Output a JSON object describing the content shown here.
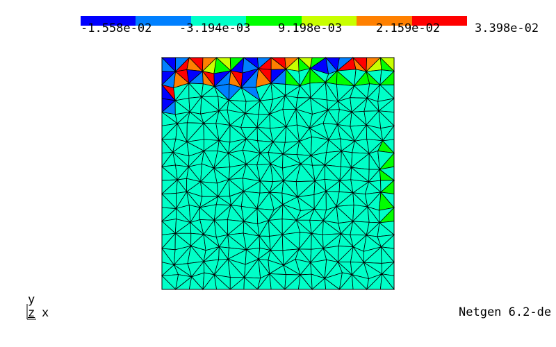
{
  "colorbar": {
    "colors": [
      "#0000ff",
      "#0080ff",
      "#00ffc8",
      "#00ff00",
      "#c8ff00",
      "#ff8000",
      "#ff0000"
    ],
    "labels": [
      "-1.558e-02",
      "-3.194e-03",
      "9.198e-03",
      "2.159e-02",
      "3.398e-02"
    ]
  },
  "mesh": {
    "fill_color": "#00ffc8",
    "edge_color": "#000000",
    "hot_colors": [
      "#0000ff",
      "#0080ff",
      "#ff0000",
      "#ff8000",
      "#c8ff00",
      "#00ff00"
    ]
  },
  "axes": {
    "y": "y",
    "z": "z",
    "x": "x"
  },
  "version": "Netgen 6.2-de"
}
